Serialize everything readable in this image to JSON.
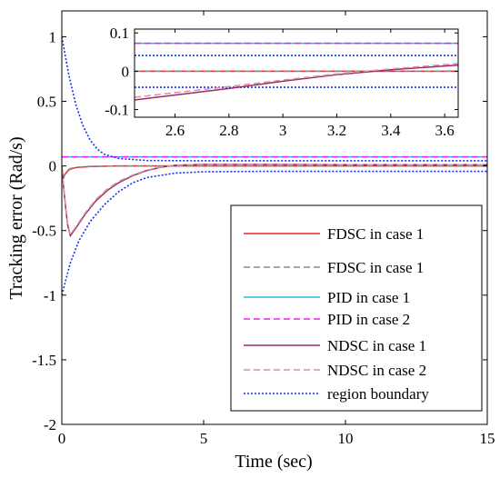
{
  "chart_data": {
    "type": "line",
    "xlabel": "Time (sec)",
    "ylabel": "Tracking error (Rad/s)",
    "xlim": [
      0,
      15
    ],
    "ylim": [
      -2,
      1.2
    ],
    "xticks": [
      0,
      5,
      10,
      15
    ],
    "yticks": [
      -2,
      -1.5,
      -1,
      -0.5,
      0,
      0.5,
      1
    ],
    "ytick_labels": [
      "-2",
      "-1.5",
      "-1",
      "-0.5",
      "0",
      "0.5",
      "1"
    ],
    "grid": false,
    "legend_position": "bottom-right",
    "series": [
      {
        "name": "FDSC in case 1",
        "color": "#e8262a",
        "dash": "solid",
        "points": [
          [
            0,
            0
          ],
          [
            0.05,
            -0.1
          ],
          [
            0.1,
            -0.07
          ],
          [
            0.2,
            -0.04
          ],
          [
            0.3,
            -0.025
          ],
          [
            0.5,
            -0.012
          ],
          [
            1,
            -0.004
          ],
          [
            2,
            0
          ],
          [
            5,
            0
          ],
          [
            10,
            0
          ],
          [
            15,
            0
          ]
        ]
      },
      {
        "name": "FDSC in case 1",
        "color": "#8a8a8a",
        "dash": "dashed",
        "points": [
          [
            0,
            0
          ],
          [
            0.05,
            -0.09
          ],
          [
            0.1,
            -0.065
          ],
          [
            0.2,
            -0.035
          ],
          [
            0.3,
            -0.02
          ],
          [
            0.5,
            -0.01
          ],
          [
            1,
            -0.003
          ],
          [
            2,
            0
          ],
          [
            5,
            0
          ],
          [
            10,
            0
          ],
          [
            15,
            0
          ]
        ]
      },
      {
        "name": "PID in case 1",
        "color": "#30b8e0",
        "dash": "solid",
        "points": [
          [
            0,
            0.07
          ],
          [
            15,
            0.07
          ]
        ]
      },
      {
        "name": "PID in case 2",
        "color": "#ee22ee",
        "dash": "dashed",
        "points": [
          [
            0,
            0.07
          ],
          [
            15,
            0.07
          ]
        ]
      },
      {
        "name": "NDSC in case 1",
        "color": "#9a2a6a",
        "dash": "solid",
        "points": [
          [
            0,
            -0.02
          ],
          [
            0.1,
            -0.25
          ],
          [
            0.2,
            -0.45
          ],
          [
            0.3,
            -0.54
          ],
          [
            0.5,
            -0.48
          ],
          [
            0.8,
            -0.38
          ],
          [
            1.2,
            -0.27
          ],
          [
            1.6,
            -0.19
          ],
          [
            2,
            -0.13
          ],
          [
            2.5,
            -0.075
          ],
          [
            3,
            -0.035
          ],
          [
            3.5,
            -0.01
          ],
          [
            4,
            0.005
          ],
          [
            5,
            0.012
          ],
          [
            7,
            0.012
          ],
          [
            10,
            0.01
          ],
          [
            15,
            0.01
          ]
        ]
      },
      {
        "name": "NDSC in case 2",
        "color": "#d8909c",
        "dash": "dashed",
        "points": [
          [
            0,
            -0.02
          ],
          [
            0.1,
            -0.24
          ],
          [
            0.2,
            -0.44
          ],
          [
            0.3,
            -0.53
          ],
          [
            0.5,
            -0.47
          ],
          [
            0.8,
            -0.37
          ],
          [
            1.2,
            -0.26
          ],
          [
            1.6,
            -0.18
          ],
          [
            2,
            -0.12
          ],
          [
            2.5,
            -0.07
          ],
          [
            3,
            -0.032
          ],
          [
            3.5,
            -0.008
          ],
          [
            4,
            0.006
          ],
          [
            5,
            0.012
          ],
          [
            7,
            0.012
          ],
          [
            10,
            0.01
          ],
          [
            15,
            0.01
          ]
        ]
      },
      {
        "name": "region boundary",
        "color": "#1a2ee8",
        "dash": "dotted",
        "points": [
          [
            0,
            1
          ],
          [
            0.25,
            0.7
          ],
          [
            0.5,
            0.47
          ],
          [
            0.75,
            0.31
          ],
          [
            1,
            0.2
          ],
          [
            1.25,
            0.13
          ],
          [
            1.5,
            0.09
          ],
          [
            2,
            0.058
          ],
          [
            3,
            0.042
          ],
          [
            5,
            0.04
          ],
          [
            15,
            0.04
          ]
        ]
      },
      {
        "name": "region boundary",
        "color": "#1a2ee8",
        "dash": "dotted",
        "legend": false,
        "points": [
          [
            0,
            -1
          ],
          [
            0.3,
            -0.75
          ],
          [
            0.6,
            -0.58
          ],
          [
            1,
            -0.43
          ],
          [
            1.5,
            -0.3
          ],
          [
            2,
            -0.2
          ],
          [
            2.5,
            -0.13
          ],
          [
            3,
            -0.09
          ],
          [
            4,
            -0.055
          ],
          [
            5,
            -0.045
          ],
          [
            7,
            -0.042
          ],
          [
            15,
            -0.042
          ]
        ]
      }
    ],
    "inset": {
      "xlim": [
        2.45,
        3.65
      ],
      "ylim": [
        -0.12,
        0.11
      ],
      "xticks": [
        2.6,
        2.8,
        3,
        3.2,
        3.4,
        3.6
      ],
      "yticks": [
        -0.1,
        0,
        0.1
      ],
      "ytick_labels": [
        "-0.1",
        "0",
        "0.1"
      ],
      "series": [
        {
          "color": "#30b8e0",
          "dash": "solid",
          "points": [
            [
              2.45,
              0.073
            ],
            [
              3.65,
              0.073
            ]
          ]
        },
        {
          "color": "#ee22ee",
          "dash": "dashed",
          "points": [
            [
              2.45,
              0.073
            ],
            [
              3.65,
              0.073
            ]
          ]
        },
        {
          "color": "#1a2ee8",
          "dash": "dotted",
          "points": [
            [
              2.45,
              0.041
            ],
            [
              3.65,
              0.041
            ]
          ]
        },
        {
          "color": "#1a2ee8",
          "dash": "dotted",
          "points": [
            [
              2.45,
              -0.042
            ],
            [
              3.65,
              -0.042
            ]
          ]
        },
        {
          "color": "#e8262a",
          "dash": "solid",
          "points": [
            [
              2.45,
              0
            ],
            [
              3.65,
              0
            ]
          ]
        },
        {
          "color": "#8a8a8a",
          "dash": "dashed",
          "points": [
            [
              2.45,
              0
            ],
            [
              3.65,
              0
            ]
          ]
        },
        {
          "color": "#9a2a6a",
          "dash": "solid",
          "points": [
            [
              2.45,
              -0.075
            ],
            [
              2.8,
              -0.045
            ],
            [
              3.0,
              -0.026
            ],
            [
              3.2,
              -0.009
            ],
            [
              3.4,
              0.004
            ],
            [
              3.65,
              0.016
            ]
          ]
        },
        {
          "color": "#d8909c",
          "dash": "dashed",
          "points": [
            [
              2.45,
              -0.068
            ],
            [
              2.8,
              -0.04
            ],
            [
              3.0,
              -0.023
            ],
            [
              3.2,
              -0.007
            ],
            [
              3.4,
              0.006
            ],
            [
              3.65,
              0.02
            ]
          ]
        }
      ]
    }
  }
}
